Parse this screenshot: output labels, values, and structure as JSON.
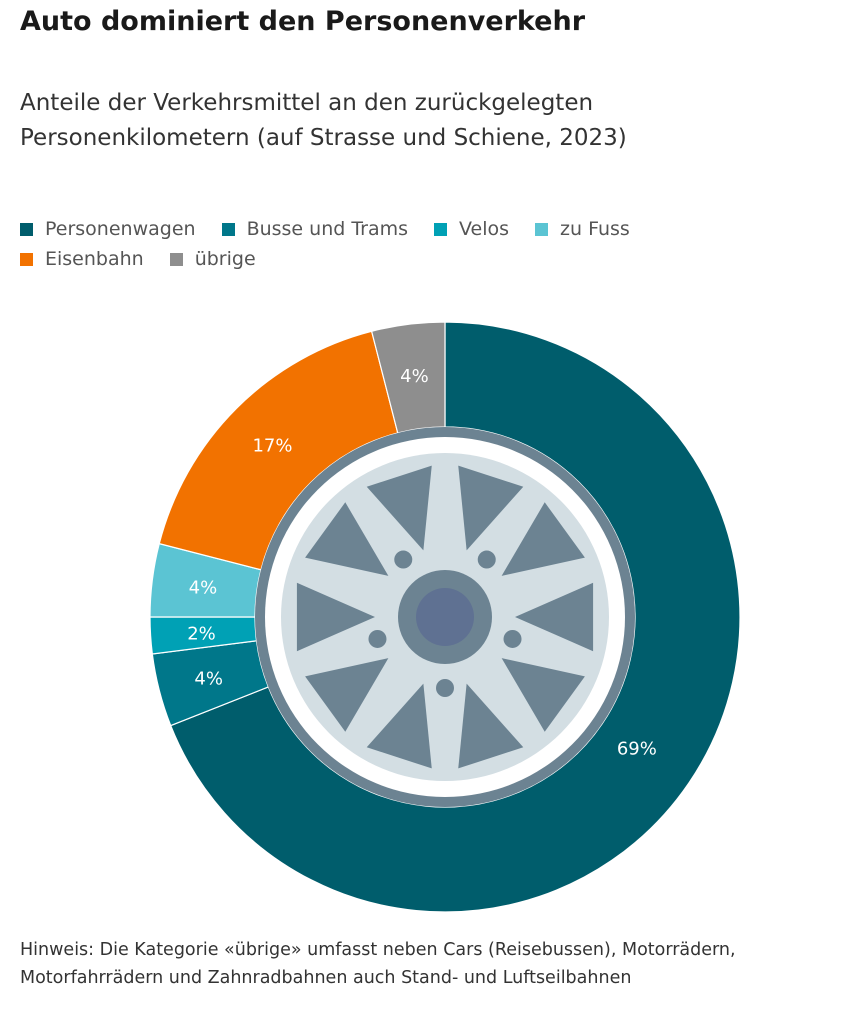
{
  "title": "Auto dominiert den Personenverkehr",
  "subtitle": "Anteile der Verkehrsmittel an den zurückgelegten Personenkilometern (auf Strasse und Schiene, 2023)",
  "note": "Hinweis: Die Kategorie «übrige» umfasst neben Cars (Reisebussen), Motorrädern, Motorfahrrädern und Zahnradbahnen auch Stand- und Luftseilbahnen",
  "chart_data": {
    "type": "pie",
    "title": "Auto dominiert den Personenverkehr",
    "legend_position": "top-left",
    "unit": "%",
    "series": [
      {
        "name": "Personenwagen",
        "value": 69,
        "label": "69%",
        "color": "#005d6c"
      },
      {
        "name": "Busse und Trams",
        "value": 4,
        "label": "4%",
        "color": "#00778a"
      },
      {
        "name": "Velos",
        "value": 2,
        "label": "2%",
        "color": "#00a1b5"
      },
      {
        "name": "zu Fuss",
        "value": 4,
        "label": "4%",
        "color": "#5bc4d3"
      },
      {
        "name": "Eisenbahn",
        "value": 17,
        "label": "17%",
        "color": "#f27200"
      },
      {
        "name": "übrige",
        "value": 4,
        "label": "4%",
        "color": "#8e8e8e"
      }
    ]
  }
}
